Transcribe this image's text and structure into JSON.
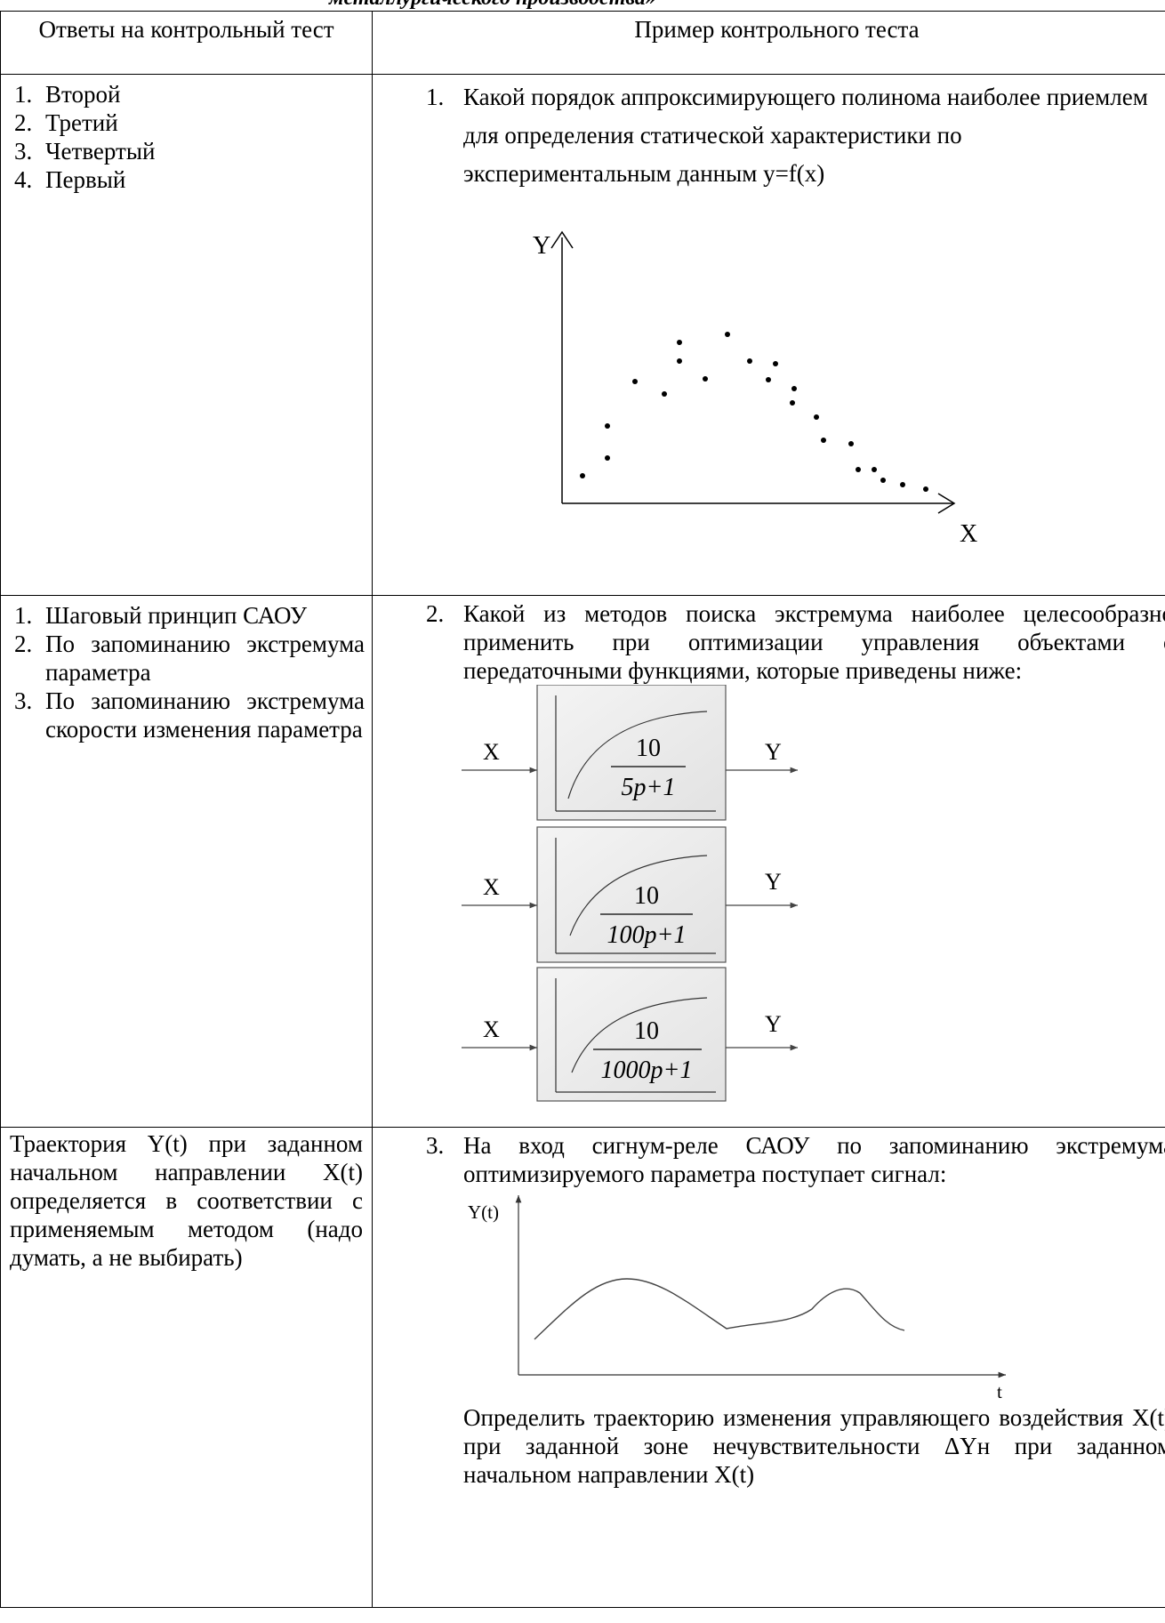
{
  "header_text": "металлургического производства»",
  "table": {
    "col1_header": "Ответы на контрольный тест",
    "col2_header": "Пример контрольного теста"
  },
  "rows": [
    {
      "answers": [
        "Второй",
        "Третий",
        "Четвертый",
        "Первый"
      ],
      "question_number": "1.",
      "question": "Какой порядок аппроксимирующего полинома наиболее приемлем для определения статической характеристики по экспериментальным данным y=f(x)",
      "figure": {
        "y_label": "Y",
        "x_label": "X"
      }
    },
    {
      "answers": [
        "Шаговый принцип САОУ",
        "По запоминанию экстремума параметра",
        "По запоминанию экстремума скорости изменения параметра"
      ],
      "question_number": "2.",
      "question": "Какой из методов поиска экстремума наиболее целесообразно применить при оптимизации управления объектами с передаточными функциями, которые приведены ниже:",
      "blocks": [
        {
          "input": "X",
          "output": "Y",
          "numerator": "10",
          "denominator": "5p+1"
        },
        {
          "input": "X",
          "output": "Y",
          "numerator": "10",
          "denominator": "100p+1"
        },
        {
          "input": "X",
          "output": "Y",
          "numerator": "10",
          "denominator": "1000p+1"
        }
      ]
    },
    {
      "answer": "Траектория Y(t) при заданном начальном направлении X(t) определяется в соответствии с применяемым методом (надо думать, а не выбирать)",
      "question_number": "3.",
      "question": "На вход сигнум-реле САОУ по запоминанию экстремума оптимизируемого параметра поступает сигнал:",
      "figure": {
        "y_label": "Y(t)",
        "x_label": "t"
      },
      "question_cont": "Определить траекторию изменения управляющего воздействия X(t) при заданной зоне нечувствительности ΔYн при заданном начальном направлении X(t)"
    }
  ]
}
